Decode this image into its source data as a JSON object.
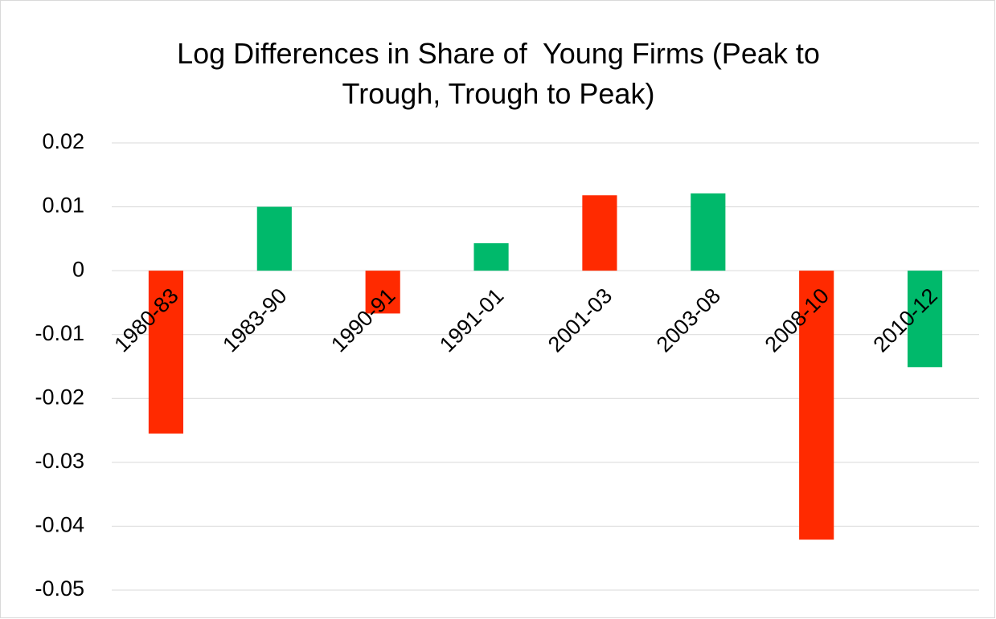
{
  "chart_data": {
    "type": "bar",
    "title": "Log Differences in Share of  Young Firms (Peak to Trough, Trough to Peak)",
    "categories": [
      "1980-83",
      "1983-90",
      "1990-91",
      "1991-01",
      "2001-03",
      "2003-08",
      "2008-10",
      "2010-12"
    ],
    "values": [
      -0.0255,
      0.01,
      -0.0067,
      0.0043,
      0.0118,
      0.0121,
      -0.0421,
      -0.0151
    ],
    "colors": [
      "#ff2a00",
      "#00b96b",
      "#ff2a00",
      "#00b96b",
      "#ff2a00",
      "#00b96b",
      "#ff2a00",
      "#00b96b"
    ],
    "ylim": [
      -0.05,
      0.02
    ],
    "yticks": [
      0.02,
      0.01,
      0,
      -0.01,
      -0.02,
      -0.03,
      -0.04,
      -0.05
    ],
    "grid": true
  }
}
